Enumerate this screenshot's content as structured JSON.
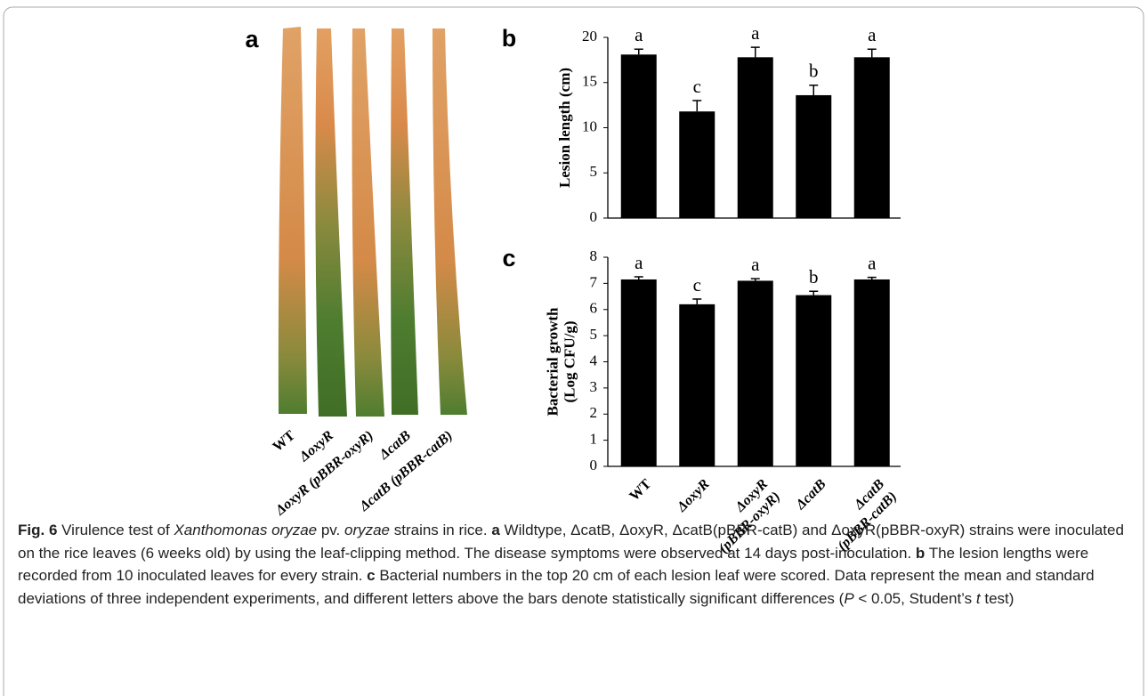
{
  "panel_a": {
    "label": "a",
    "strains": [
      "WT",
      "ΔoxyR",
      "ΔoxyR (pBBR-oxyR)",
      "ΔcatB",
      "ΔcatB (pBBR-catB)"
    ]
  },
  "chart_data": [
    {
      "type": "bar",
      "panel_label": "b",
      "ylabel": [
        "Lesion length (cm)"
      ],
      "categories": [
        null,
        null,
        null,
        null,
        null
      ],
      "values": [
        18.1,
        11.8,
        17.8,
        13.6,
        17.8
      ],
      "errors": [
        0.6,
        1.2,
        1.1,
        1.1,
        0.9
      ],
      "annotations": [
        "a",
        "c",
        "a",
        "b",
        "a"
      ],
      "color": "#000000",
      "ylim": [
        0,
        20
      ],
      "yticks": [
        0,
        5,
        10,
        15,
        20
      ]
    },
    {
      "type": "bar",
      "panel_label": "c",
      "ylabel": [
        "Bacterial growth",
        "(Log CFU/g)"
      ],
      "categories": [
        [
          "WT"
        ],
        [
          "ΔoxyR"
        ],
        [
          "ΔoxyR",
          "(pBBR-oxyR)"
        ],
        [
          "ΔcatB"
        ],
        [
          "ΔcatB",
          "(pBBR-catB)"
        ]
      ],
      "values": [
        7.15,
        6.2,
        7.1,
        6.55,
        7.15
      ],
      "errors": [
        0.1,
        0.2,
        0.08,
        0.15,
        0.08
      ],
      "annotations": [
        "a",
        "c",
        "a",
        "b",
        "a"
      ],
      "color": "#000000",
      "ylim": [
        0,
        8
      ],
      "yticks": [
        0,
        1,
        2,
        3,
        4,
        5,
        6,
        7,
        8
      ]
    }
  ],
  "caption": [
    {
      "text": "Fig. 6",
      "bold": true
    },
    {
      "text": " Virulence test of "
    },
    {
      "text": "Xanthomonas oryzae",
      "italic": true
    },
    {
      "text": " pv. "
    },
    {
      "text": "oryzae",
      "italic": true
    },
    {
      "text": " strains in rice. "
    },
    {
      "text": "a",
      "bold": true
    },
    {
      "text": " Wildtype, ΔcatB, ΔoxyR, ΔcatB(pBBR-catB) and ΔoxyR(pBBR-oxyR) strains were inoculated on the rice leaves (6 weeks old) by using the leaf-clipping method. The disease symptoms were observed at 14 days post-inoculation. "
    },
    {
      "text": "b",
      "bold": true
    },
    {
      "text": " The lesion lengths were recorded from 10 inoculated leaves for every strain. "
    },
    {
      "text": "c",
      "bold": true
    },
    {
      "text": " Bacterial numbers in the top 20 cm of each lesion leaf were scored. Data represent the mean and standard deviations of three independent experiments, and different letters above the bars denote statistically significant differences ("
    },
    {
      "text": "P",
      "italic": true
    },
    {
      "text": " < 0.05, Student’s "
    },
    {
      "text": "t",
      "italic": true
    },
    {
      "text": " test)"
    }
  ]
}
